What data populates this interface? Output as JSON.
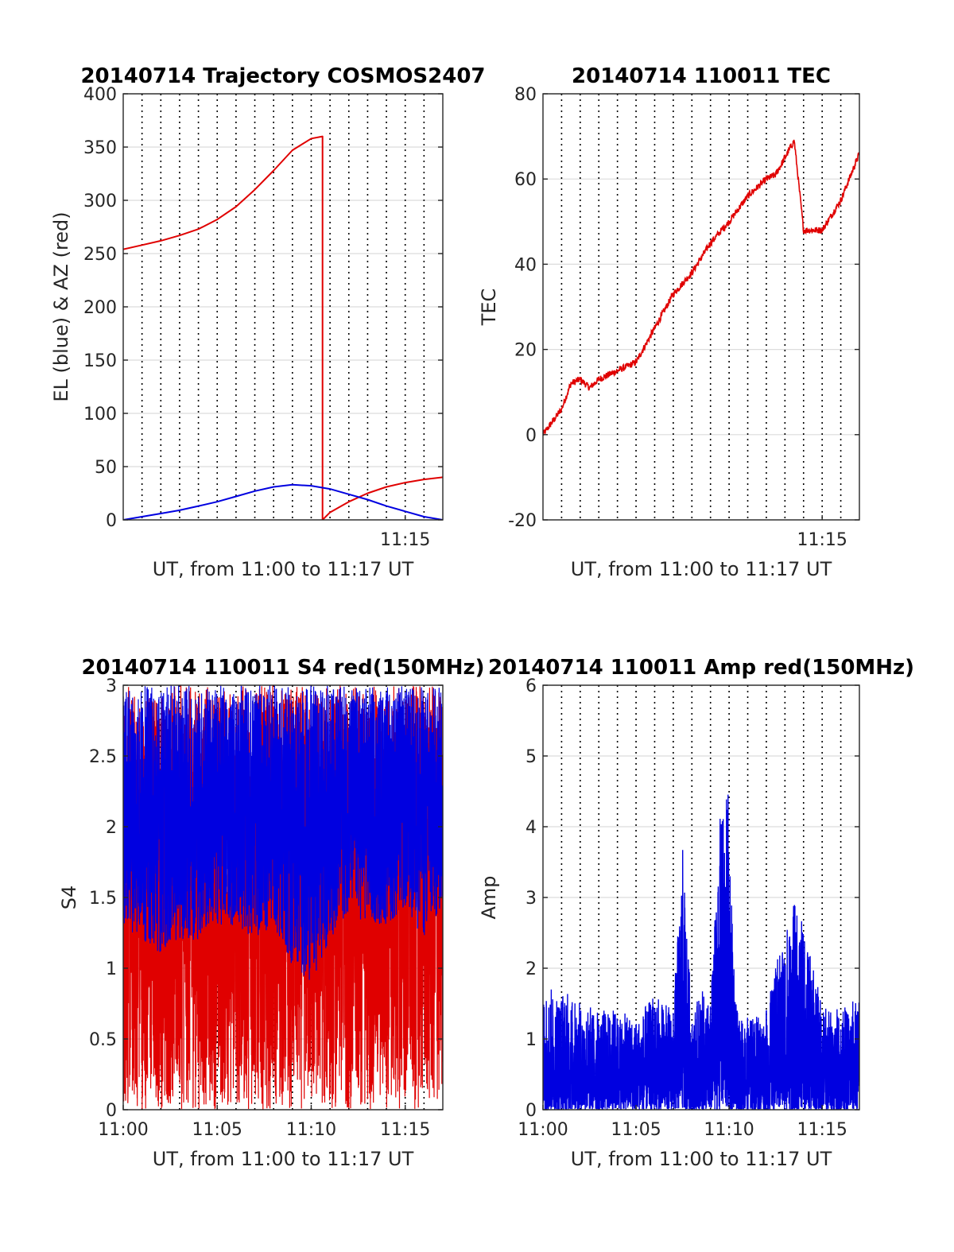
{
  "chart_data": [
    {
      "type": "line",
      "title": "20140714 Trajectory COSMOS2407",
      "xlabel": "UT, from 11:00 to 11:17 UT",
      "ylabel": "EL (blue) & AZ (red)",
      "xlim": [
        "11:00",
        "11:17"
      ],
      "ylim": [
        0,
        400
      ],
      "x_ticks": [
        "11:15"
      ],
      "y_ticks": [
        "0",
        "50",
        "100",
        "150",
        "200",
        "250",
        "300",
        "350",
        "400"
      ],
      "grid": true,
      "series": [
        {
          "color": "#e00000",
          "x": [
            "11:00",
            "11:01",
            "11:02",
            "11:03",
            "11:04",
            "11:05",
            "11:06",
            "11:07",
            "11:08",
            "11:09",
            "11:10",
            "11:10.6",
            "11:10.6",
            "11:11",
            "11:12",
            "11:13",
            "11:14",
            "11:15",
            "11:16",
            "11:17"
          ],
          "values": [
            254,
            258,
            262,
            267,
            273,
            282,
            294,
            310,
            328,
            347,
            358,
            360,
            0,
            7,
            17,
            25,
            31,
            35,
            38,
            40
          ]
        },
        {
          "color": "#0000e0",
          "x": [
            "11:00",
            "11:01",
            "11:02",
            "11:03",
            "11:04",
            "11:05",
            "11:06",
            "11:07",
            "11:08",
            "11:09",
            "11:10",
            "11:11",
            "11:12",
            "11:13",
            "11:14",
            "11:15",
            "11:16",
            "11:17"
          ],
          "values": [
            0,
            3,
            6,
            9,
            13,
            17,
            22,
            27,
            31,
            33,
            32,
            29,
            24,
            19,
            13,
            8,
            3,
            0
          ]
        }
      ]
    },
    {
      "type": "line",
      "title": "20140714 110011 TEC",
      "xlabel": "UT, from 11:00 to 11:17 UT",
      "ylabel": "TEC",
      "xlim": [
        "11:00",
        "11:17"
      ],
      "ylim": [
        -20,
        80
      ],
      "x_ticks": [
        "11:15"
      ],
      "y_ticks": [
        "-20",
        "0",
        "20",
        "40",
        "60",
        "80"
      ],
      "grid": true,
      "series": [
        {
          "color": "#e00000",
          "x": [
            "11:00",
            "11:01",
            "11:01.5",
            "11:02",
            "11:02.5",
            "11:03",
            "11:04",
            "11:05",
            "11:06",
            "11:07",
            "11:08",
            "11:09",
            "11:10",
            "11:11",
            "11:12",
            "11:12.5",
            "11:13",
            "11:13.5",
            "11:14",
            "11:15",
            "11:16",
            "11:17"
          ],
          "values": [
            0,
            6,
            12,
            13,
            11,
            13,
            15,
            17,
            25,
            33,
            38,
            45,
            50,
            56,
            60,
            61,
            65,
            69,
            48,
            48,
            55,
            66
          ]
        }
      ]
    },
    {
      "type": "line",
      "title": "20140714 110011 S4 red(150MHz)",
      "xlabel": "UT, from 11:00 to 11:17 UT",
      "ylabel": "S4",
      "xlim": [
        "11:00",
        "11:17"
      ],
      "ylim": [
        0,
        3
      ],
      "x_ticks": [
        "11:00",
        "11:05",
        "11:10",
        "11:15"
      ],
      "y_ticks": [
        "0",
        "0.5",
        "1",
        "1.5",
        "2",
        "2.5",
        "3"
      ],
      "grid": true,
      "series": [
        {
          "color": "#e00000",
          "x": [
            "11:00",
            "11:01",
            "11:02",
            "11:03",
            "11:04",
            "11:05",
            "11:06",
            "11:07",
            "11:08",
            "11:09",
            "11:10",
            "11:11",
            "11:12",
            "11:13",
            "11:14",
            "11:15",
            "11:16",
            "11:17"
          ],
          "values_min": [
            0,
            0,
            0,
            0,
            0,
            0,
            0,
            0,
            0,
            0,
            0,
            0,
            0,
            0,
            0,
            0,
            0,
            0
          ],
          "values_max": [
            3,
            3,
            3,
            3,
            3,
            3,
            3,
            3,
            3,
            3,
            3,
            3,
            3,
            3,
            3,
            3,
            3,
            3
          ]
        },
        {
          "color": "#0000e0",
          "x": [
            "11:00",
            "11:01",
            "11:02",
            "11:03",
            "11:04",
            "11:05",
            "11:06",
            "11:07",
            "11:08",
            "11:09",
            "11:10",
            "11:11",
            "11:12",
            "11:13",
            "11:14",
            "11:15",
            "11:16",
            "11:17"
          ],
          "values_min": [
            1.3,
            1.2,
            1.1,
            1.2,
            1.2,
            1.3,
            1.3,
            1.2,
            1.3,
            1.0,
            0.9,
            1.2,
            1.4,
            1.3,
            1.3,
            1.4,
            1.2,
            1.4
          ],
          "values_max": [
            3,
            3,
            3,
            3,
            3,
            3,
            3,
            3,
            3,
            3,
            3,
            3,
            3,
            3,
            3,
            3,
            3,
            3
          ]
        }
      ]
    },
    {
      "type": "line",
      "title": "20140714 110011 Amp red(150MHz)",
      "xlabel": "UT, from 11:00 to 11:17 UT",
      "ylabel": "Amp",
      "xlim": [
        "11:00",
        "11:17"
      ],
      "ylim": [
        0,
        6
      ],
      "x_ticks": [
        "11:00",
        "11:05",
        "11:10",
        "11:15"
      ],
      "y_ticks": [
        "0",
        "1",
        "2",
        "3",
        "4",
        "5",
        "6"
      ],
      "grid": true,
      "series": [
        {
          "color": "#0000e0",
          "x": [
            "11:00",
            "11:01",
            "11:02",
            "11:03",
            "11:04",
            "11:05",
            "11:06",
            "11:07",
            "11:07.5",
            "11:08",
            "11:08.5",
            "11:09",
            "11:09.5",
            "11:10",
            "11:10.3",
            "11:10.5",
            "11:11",
            "11:12",
            "11:13",
            "11:13.5",
            "11:14",
            "11:14.5",
            "11:15",
            "11:16",
            "11:17"
          ],
          "values_max": [
            1.7,
            1.7,
            1.5,
            1.4,
            1.4,
            1.3,
            1.6,
            1.4,
            3.7,
            1.3,
            1.7,
            1.5,
            4.1,
            4.5,
            1.6,
            1.3,
            1.3,
            1.4,
            2.6,
            2.9,
            2.6,
            2.0,
            1.5,
            1.4,
            1.6
          ],
          "values_min": [
            0,
            0,
            0,
            0,
            0,
            0,
            0,
            0,
            0,
            0,
            0,
            0,
            0,
            0,
            0,
            0,
            0,
            0,
            0,
            0,
            0,
            0,
            0,
            0,
            0
          ]
        }
      ]
    }
  ]
}
